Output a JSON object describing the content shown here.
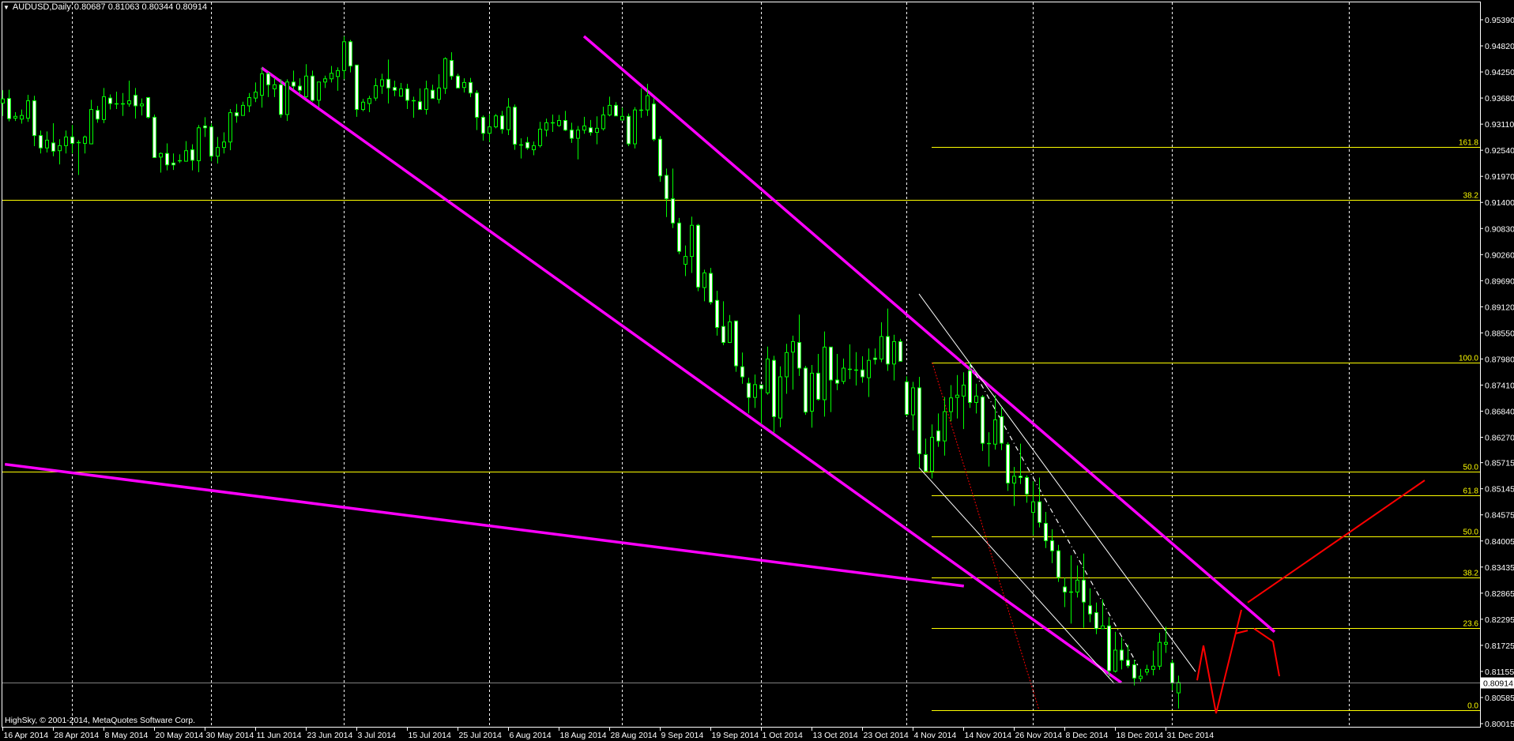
{
  "window": {
    "symbol_label": "AUDUSD,Daily",
    "ohlc_readout": "0.80687 0.81063 0.80344 0.80914",
    "menu_icon": "triangle-down-icon",
    "copyright": "HighSky, © 2001-2014, MetaQuotes Software Corp."
  },
  "colors": {
    "background": "#000000",
    "candle_outline": "#00ff00",
    "bear_fill": "#ffffff",
    "bull_fill": "#000000",
    "grid": "#ffffff",
    "fibonacci": "#ffff00",
    "channel": "#ff00ff",
    "projection": "#ff0000",
    "thin_channel": "#ffffff",
    "price_line": "#808080"
  },
  "chart_data": {
    "type": "candlestick",
    "symbol": "AUDUSD",
    "timeframe": "Daily",
    "ylim": [
      0.80015,
      0.9539
    ],
    "y_ticks": [
      "0.95390",
      "0.94820",
      "0.94250",
      "0.93680",
      "0.93110",
      "0.92540",
      "0.91970",
      "0.91400",
      "0.90830",
      "0.90260",
      "0.89690",
      "0.89120",
      "0.88550",
      "0.87980",
      "0.87410",
      "0.86840",
      "0.86270",
      "0.85715",
      "0.85145",
      "0.84575",
      "0.84005",
      "0.83435",
      "0.82865",
      "0.82295",
      "0.81725",
      "0.81155",
      "0.80585",
      "0.80015"
    ],
    "x_ticks": [
      "16 Apr 2014",
      "28 Apr 2014",
      "8 May 2014",
      "20 May 2014",
      "30 May 2014",
      "11 Jun 2014",
      "23 Jun 2014",
      "3 Jul 2014",
      "15 Jul 2014",
      "25 Jul 2014",
      "6 Aug 2014",
      "18 Aug 2014",
      "28 Aug 2014",
      "9 Sep 2014",
      "19 Sep 2014",
      "1 Oct 2014",
      "13 Oct 2014",
      "23 Oct 2014",
      "4 Nov 2014",
      "14 Nov 2014",
      "26 Nov 2014",
      "8 Dec 2014",
      "18 Dec 2014",
      "31 Dec 2014"
    ],
    "x_tick_every_bars": 8,
    "grid": true,
    "current_price": "0.80914",
    "ohlc": [
      [
        0.9357,
        0.9385,
        0.9329,
        0.9366
      ],
      [
        0.9367,
        0.9386,
        0.9317,
        0.9323
      ],
      [
        0.9324,
        0.9337,
        0.9318,
        0.9328
      ],
      [
        0.9322,
        0.9343,
        0.9312,
        0.933
      ],
      [
        0.9324,
        0.9375,
        0.9316,
        0.9362
      ],
      [
        0.9362,
        0.9373,
        0.9263,
        0.9286
      ],
      [
        0.9286,
        0.9297,
        0.9247,
        0.9259
      ],
      [
        0.9259,
        0.9295,
        0.9249,
        0.9276
      ],
      [
        0.927,
        0.9313,
        0.9241,
        0.9252
      ],
      [
        0.9253,
        0.9278,
        0.9223,
        0.9264
      ],
      [
        0.9264,
        0.9297,
        0.9247,
        0.9283
      ],
      [
        0.9283,
        0.9309,
        0.9247,
        0.9269
      ],
      [
        0.9271,
        0.9276,
        0.92,
        0.9271
      ],
      [
        0.9269,
        0.9286,
        0.9247,
        0.9283
      ],
      [
        0.9268,
        0.9364,
        0.9267,
        0.9343
      ],
      [
        0.9341,
        0.9351,
        0.9314,
        0.9322
      ],
      [
        0.9321,
        0.939,
        0.9313,
        0.9371
      ],
      [
        0.9368,
        0.9376,
        0.9343,
        0.9356
      ],
      [
        0.9356,
        0.9382,
        0.9344,
        0.9356
      ],
      [
        0.9356,
        0.9379,
        0.9329,
        0.9356
      ],
      [
        0.9355,
        0.9406,
        0.9349,
        0.9362
      ],
      [
        0.9374,
        0.939,
        0.9323,
        0.9351
      ],
      [
        0.9351,
        0.9367,
        0.933,
        0.9355
      ],
      [
        0.9369,
        0.937,
        0.9323,
        0.9326
      ],
      [
        0.9326,
        0.9332,
        0.9237,
        0.9238
      ],
      [
        0.9239,
        0.9249,
        0.9205,
        0.9247
      ],
      [
        0.9247,
        0.9269,
        0.921,
        0.9222
      ],
      [
        0.9226,
        0.9247,
        0.9211,
        0.9222
      ],
      [
        0.9232,
        0.9245,
        0.9226,
        0.9232
      ],
      [
        0.923,
        0.9274,
        0.9229,
        0.9253
      ],
      [
        0.9255,
        0.9267,
        0.921,
        0.9232
      ],
      [
        0.9231,
        0.9309,
        0.9206,
        0.9303
      ],
      [
        0.9307,
        0.9326,
        0.9283,
        0.9303
      ],
      [
        0.9305,
        0.9312,
        0.923,
        0.9241
      ],
      [
        0.9241,
        0.9283,
        0.9225,
        0.926
      ],
      [
        0.926,
        0.9293,
        0.9247,
        0.9272
      ],
      [
        0.9272,
        0.9344,
        0.9254,
        0.9336
      ],
      [
        0.9336,
        0.9355,
        0.9314,
        0.9329
      ],
      [
        0.933,
        0.936,
        0.933,
        0.9352
      ],
      [
        0.9351,
        0.9379,
        0.9337,
        0.9369
      ],
      [
        0.9368,
        0.9402,
        0.9359,
        0.9381
      ],
      [
        0.9374,
        0.9435,
        0.9347,
        0.9421
      ],
      [
        0.9421,
        0.9425,
        0.937,
        0.9397
      ],
      [
        0.9388,
        0.9412,
        0.937,
        0.9397
      ],
      [
        0.9397,
        0.9409,
        0.9325,
        0.9332
      ],
      [
        0.9332,
        0.9409,
        0.9318,
        0.9403
      ],
      [
        0.9403,
        0.9428,
        0.9386,
        0.9394
      ],
      [
        0.9394,
        0.9411,
        0.9376,
        0.9385
      ],
      [
        0.9371,
        0.9442,
        0.9368,
        0.9416
      ],
      [
        0.9416,
        0.9428,
        0.936,
        0.9363
      ],
      [
        0.9363,
        0.9403,
        0.9348,
        0.9403
      ],
      [
        0.9403,
        0.9417,
        0.939,
        0.941
      ],
      [
        0.941,
        0.9438,
        0.9402,
        0.9422
      ],
      [
        0.9415,
        0.9435,
        0.9384,
        0.9428
      ],
      [
        0.9428,
        0.9503,
        0.9409,
        0.9491
      ],
      [
        0.9491,
        0.9495,
        0.9424,
        0.9438
      ],
      [
        0.944,
        0.944,
        0.9327,
        0.9343
      ],
      [
        0.9343,
        0.9366,
        0.9339,
        0.9359
      ],
      [
        0.9356,
        0.9373,
        0.9337,
        0.9367
      ],
      [
        0.9368,
        0.9411,
        0.9362,
        0.9395
      ],
      [
        0.9394,
        0.9421,
        0.9377,
        0.9408
      ],
      [
        0.9409,
        0.9452,
        0.9356,
        0.939
      ],
      [
        0.9391,
        0.9406,
        0.9372,
        0.9385
      ],
      [
        0.9372,
        0.9401,
        0.9372,
        0.9388
      ],
      [
        0.9388,
        0.9399,
        0.9344,
        0.9363
      ],
      [
        0.9363,
        0.9371,
        0.9325,
        0.9363
      ],
      [
        0.936,
        0.9389,
        0.9343,
        0.9343
      ],
      [
        0.9343,
        0.9406,
        0.9332,
        0.9388
      ],
      [
        0.9385,
        0.9397,
        0.9367,
        0.9367
      ],
      [
        0.9365,
        0.942,
        0.9356,
        0.939
      ],
      [
        0.9389,
        0.9457,
        0.9377,
        0.9454
      ],
      [
        0.945,
        0.9468,
        0.9408,
        0.9416
      ],
      [
        0.9416,
        0.9421,
        0.939,
        0.939
      ],
      [
        0.9391,
        0.9411,
        0.938,
        0.9402
      ],
      [
        0.9402,
        0.9412,
        0.937,
        0.9379
      ],
      [
        0.9379,
        0.9385,
        0.9298,
        0.9326
      ],
      [
        0.9326,
        0.933,
        0.9275,
        0.9291
      ],
      [
        0.9291,
        0.9333,
        0.9272,
        0.9305
      ],
      [
        0.9305,
        0.9333,
        0.9302,
        0.9329
      ],
      [
        0.9329,
        0.934,
        0.929,
        0.93
      ],
      [
        0.9299,
        0.9368,
        0.9287,
        0.9348
      ],
      [
        0.9348,
        0.9354,
        0.9255,
        0.9267
      ],
      [
        0.9267,
        0.928,
        0.9236,
        0.9267
      ],
      [
        0.9271,
        0.9283,
        0.9255,
        0.9259
      ],
      [
        0.9255,
        0.9273,
        0.9243,
        0.9264
      ],
      [
        0.9264,
        0.9316,
        0.926,
        0.93
      ],
      [
        0.9298,
        0.9323,
        0.9284,
        0.9314
      ],
      [
        0.9314,
        0.9332,
        0.9294,
        0.9314
      ],
      [
        0.9308,
        0.9331,
        0.9305,
        0.9319
      ],
      [
        0.9319,
        0.934,
        0.9296,
        0.9298
      ],
      [
        0.9298,
        0.9314,
        0.927,
        0.928
      ],
      [
        0.928,
        0.9307,
        0.9234,
        0.9298
      ],
      [
        0.9298,
        0.9327,
        0.929,
        0.9307
      ],
      [
        0.9303,
        0.932,
        0.9286,
        0.9293
      ],
      [
        0.9293,
        0.9328,
        0.9267,
        0.9302
      ],
      [
        0.9301,
        0.9349,
        0.9297,
        0.9331
      ],
      [
        0.9331,
        0.9371,
        0.9328,
        0.9352
      ],
      [
        0.9352,
        0.9359,
        0.9328,
        0.9329
      ],
      [
        0.932,
        0.9347,
        0.932,
        0.9328
      ],
      [
        0.9328,
        0.9334,
        0.9263,
        0.9268
      ],
      [
        0.9268,
        0.9348,
        0.9258,
        0.9342
      ],
      [
        0.9342,
        0.9389,
        0.9325,
        0.9342
      ],
      [
        0.9342,
        0.9399,
        0.9329,
        0.9373
      ],
      [
        0.9355,
        0.9368,
        0.9274,
        0.9278
      ],
      [
        0.9278,
        0.9285,
        0.9185,
        0.9198
      ],
      [
        0.9199,
        0.9214,
        0.9108,
        0.9148
      ],
      [
        0.9148,
        0.9214,
        0.9084,
        0.9095
      ],
      [
        0.9095,
        0.9106,
        0.9027,
        0.9033
      ],
      [
        0.9005,
        0.9046,
        0.8979,
        0.9022
      ],
      [
        0.9022,
        0.9109,
        0.8986,
        0.909
      ],
      [
        0.909,
        0.9093,
        0.8946,
        0.8955
      ],
      [
        0.8954,
        0.8993,
        0.8924,
        0.8986
      ],
      [
        0.8985,
        0.8997,
        0.8917,
        0.8922
      ],
      [
        0.8926,
        0.8947,
        0.8849,
        0.8867
      ],
      [
        0.8869,
        0.8924,
        0.8828,
        0.8834
      ],
      [
        0.8834,
        0.8894,
        0.8833,
        0.8879
      ],
      [
        0.8881,
        0.8881,
        0.877,
        0.8783
      ],
      [
        0.8781,
        0.8812,
        0.8744,
        0.8759
      ],
      [
        0.8745,
        0.8757,
        0.8679,
        0.8714
      ],
      [
        0.8714,
        0.8764,
        0.8691,
        0.8742
      ],
      [
        0.8741,
        0.8741,
        0.8656,
        0.8733
      ],
      [
        0.8724,
        0.8825,
        0.872,
        0.8798
      ],
      [
        0.8795,
        0.8805,
        0.8636,
        0.8672
      ],
      [
        0.8669,
        0.8782,
        0.8649,
        0.8759
      ],
      [
        0.8759,
        0.8831,
        0.8722,
        0.8812
      ],
      [
        0.8813,
        0.8849,
        0.8731,
        0.8836
      ],
      [
        0.8834,
        0.8895,
        0.8761,
        0.8778
      ],
      [
        0.8778,
        0.8783,
        0.8676,
        0.8682
      ],
      [
        0.8684,
        0.8785,
        0.8648,
        0.8767
      ],
      [
        0.8767,
        0.8809,
        0.8707,
        0.871
      ],
      [
        0.8709,
        0.8858,
        0.8672,
        0.8824
      ],
      [
        0.8824,
        0.8824,
        0.8682,
        0.8752
      ],
      [
        0.8752,
        0.8809,
        0.873,
        0.8745
      ],
      [
        0.8749,
        0.8799,
        0.8743,
        0.8778
      ],
      [
        0.8777,
        0.883,
        0.8754,
        0.8777
      ],
      [
        0.8774,
        0.8813,
        0.874,
        0.8774
      ],
      [
        0.8774,
        0.8804,
        0.8746,
        0.8759
      ],
      [
        0.8757,
        0.8821,
        0.8715,
        0.8795
      ],
      [
        0.88,
        0.8821,
        0.8786,
        0.8797
      ],
      [
        0.8798,
        0.8878,
        0.8791,
        0.8847
      ],
      [
        0.8847,
        0.8908,
        0.8772,
        0.8787
      ],
      [
        0.8787,
        0.8851,
        0.8751,
        0.8836
      ],
      [
        0.8836,
        0.8842,
        0.8793,
        0.8793
      ],
      [
        0.8748,
        0.876,
        0.8673,
        0.8677
      ],
      [
        0.8676,
        0.8748,
        0.8642,
        0.8735
      ],
      [
        0.8735,
        0.8759,
        0.8561,
        0.8591
      ],
      [
        0.8589,
        0.8624,
        0.8553,
        0.8553
      ],
      [
        0.8553,
        0.8655,
        0.8537,
        0.8627
      ],
      [
        0.8641,
        0.8679,
        0.8606,
        0.8619
      ],
      [
        0.8619,
        0.8715,
        0.8587,
        0.8683
      ],
      [
        0.8683,
        0.8741,
        0.8662,
        0.8713
      ],
      [
        0.8714,
        0.8763,
        0.8668,
        0.8719
      ],
      [
        0.8717,
        0.8769,
        0.8645,
        0.8741
      ],
      [
        0.8772,
        0.879,
        0.8691,
        0.8703
      ],
      [
        0.8703,
        0.8744,
        0.8679,
        0.8717
      ],
      [
        0.8715,
        0.8719,
        0.8597,
        0.8614
      ],
      [
        0.8614,
        0.8638,
        0.8563,
        0.8614
      ],
      [
        0.8612,
        0.8719,
        0.86,
        0.8665
      ],
      [
        0.8672,
        0.8693,
        0.8599,
        0.8614
      ],
      [
        0.8611,
        0.8616,
        0.851,
        0.8527
      ],
      [
        0.8527,
        0.8562,
        0.8477,
        0.8542
      ],
      [
        0.8542,
        0.8613,
        0.8525,
        0.8539
      ],
      [
        0.8539,
        0.8544,
        0.8484,
        0.8503
      ],
      [
        0.8463,
        0.8531,
        0.8413,
        0.8486
      ],
      [
        0.8486,
        0.8539,
        0.843,
        0.8441
      ],
      [
        0.8439,
        0.8464,
        0.8385,
        0.8401
      ],
      [
        0.8401,
        0.8426,
        0.8352,
        0.8379
      ],
      [
        0.8379,
        0.8392,
        0.8311,
        0.8321
      ],
      [
        0.83,
        0.832,
        0.8256,
        0.8289
      ],
      [
        0.8289,
        0.8369,
        0.822,
        0.8289
      ],
      [
        0.8289,
        0.8347,
        0.8277,
        0.8315
      ],
      [
        0.8315,
        0.8373,
        0.8211,
        0.8267
      ],
      [
        0.8259,
        0.8297,
        0.8223,
        0.8241
      ],
      [
        0.8244,
        0.8266,
        0.8197,
        0.8209
      ],
      [
        0.8209,
        0.8273,
        0.8209,
        0.8215
      ],
      [
        0.8215,
        0.8234,
        0.8104,
        0.8117
      ],
      [
        0.8116,
        0.8202,
        0.8113,
        0.8162
      ],
      [
        0.8162,
        0.819,
        0.812,
        0.814
      ],
      [
        0.814,
        0.8174,
        0.8123,
        0.8128
      ],
      [
        0.813,
        0.8141,
        0.8085,
        0.8101
      ],
      [
        0.81,
        0.8121,
        0.8093,
        0.8105
      ],
      [
        0.8114,
        0.813,
        0.8107,
        0.812
      ],
      [
        0.812,
        0.8161,
        0.8107,
        0.8127
      ],
      [
        0.8127,
        0.82,
        0.8119,
        0.8179
      ],
      [
        0.8175,
        0.8213,
        0.8156,
        0.8179
      ],
      [
        0.8134,
        0.8141,
        0.8074,
        0.809
      ],
      [
        0.80687,
        0.81063,
        0.80344,
        0.80914
      ]
    ],
    "horizontal_levels": [
      {
        "label": "38.2",
        "price": 0.91456
      },
      {
        "label": "50.0",
        "price": 0.85519
      }
    ],
    "fibonacci": {
      "start_bar": 147,
      "levels": [
        {
          "label": "161.8",
          "price": 0.92612
        },
        {
          "label": "100.0",
          "price": 0.87901
        },
        {
          "label": "61.8",
          "price": 0.85002
        },
        {
          "label": "50.0",
          "price": 0.84105
        },
        {
          "label": "38.2",
          "price": 0.83207
        },
        {
          "label": "23.6",
          "price": 0.82103
        },
        {
          "label": "0.0",
          "price": 0.80308
        }
      ]
    },
    "trendlines": [
      {
        "style": "channel",
        "points": [
          [
            92,
            0.9503
          ],
          [
            201.25,
            0.8202
          ]
        ]
      },
      {
        "style": "channel",
        "points": [
          [
            41,
            0.9434
          ],
          [
            177,
            0.8091
          ]
        ]
      },
      {
        "style": "channel",
        "points": [
          [
            0.4,
            0.8568
          ],
          [
            152.1,
            0.8302
          ]
        ]
      },
      {
        "style": "thin",
        "points": [
          [
            145,
            0.894
          ],
          [
            188.75,
            0.8115
          ]
        ]
      },
      {
        "style": "thin",
        "points": [
          [
            145,
            0.8561
          ],
          [
            175.9,
            0.8089
          ]
        ]
      },
      {
        "style": "thin-dashed",
        "points": [
          [
            153,
            0.8788
          ],
          [
            179.6,
            0.8129
          ]
        ]
      },
      {
        "style": "red-dotted",
        "points": [
          [
            147.1,
            0.879
          ],
          [
            164,
            0.8031
          ]
        ]
      },
      {
        "style": "projection",
        "points": [
          [
            189,
            0.8096
          ],
          [
            190,
            0.8172
          ],
          [
            192,
            0.8024
          ],
          [
            196,
            0.825
          ]
        ]
      },
      {
        "style": "projection",
        "points": [
          [
            195,
            0.8198
          ],
          [
            197,
            0.8205
          ]
        ]
      },
      {
        "style": "projection",
        "points": [
          [
            198,
            0.8209
          ],
          [
            201,
            0.8181
          ],
          [
            202,
            0.8105
          ]
        ]
      },
      {
        "style": "projection",
        "points": [
          [
            197,
            0.8266
          ],
          [
            225,
            0.8533
          ]
        ]
      }
    ],
    "period_separators_bars": [
      11,
      33,
      54,
      77,
      98,
      120,
      143,
      163,
      185,
      213
    ]
  }
}
